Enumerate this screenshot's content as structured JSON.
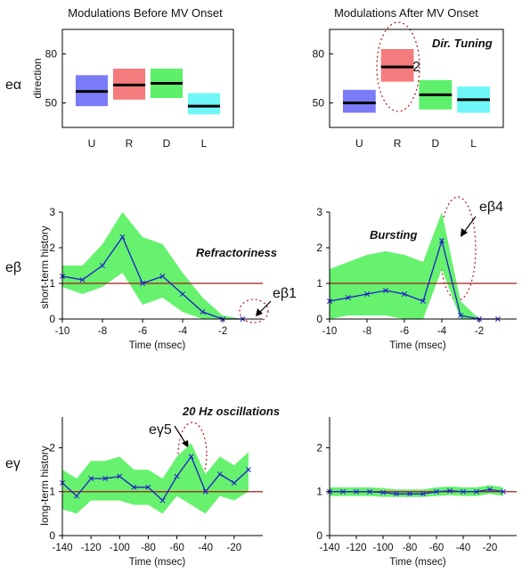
{
  "chart_data": [
    {
      "type": "bar",
      "title": "Modulations Before MV Onset",
      "ylabel": "direction",
      "ylim": [
        35,
        95
      ],
      "yticks": [
        50,
        80
      ],
      "categories": [
        "U",
        "R",
        "D",
        "L"
      ],
      "colors": [
        "#7b7bf7",
        "#f47c7c",
        "#5ef06a",
        "#6ff6f6"
      ],
      "values": [
        57,
        61,
        62,
        48
      ],
      "band_low": [
        48,
        52,
        53,
        43
      ],
      "band_high": [
        67,
        71,
        71,
        56
      ],
      "side_label": "eα"
    },
    {
      "type": "bar",
      "title": "Modulations After MV Onset",
      "ylim": [
        35,
        95
      ],
      "yticks": [
        50,
        80
      ],
      "categories": [
        "U",
        "R",
        "D",
        "L"
      ],
      "colors": [
        "#7b7bf7",
        "#f47c7c",
        "#5ef06a",
        "#6ff6f6"
      ],
      "values": [
        50,
        72,
        55,
        52
      ],
      "band_low": [
        44,
        63,
        46,
        44
      ],
      "band_high": [
        58,
        83,
        64,
        60
      ],
      "annotations": [
        "Dir. Tuning",
        "eα2"
      ]
    },
    {
      "type": "line",
      "ylabel": "short-term history",
      "xlabel": "Time (msec)",
      "xlim": [
        -10,
        0
      ],
      "ylim": [
        0,
        3
      ],
      "xticks": [
        -10,
        -8,
        -6,
        -4,
        -2
      ],
      "yticks": [
        0,
        1,
        2,
        3
      ],
      "reference_line": 1,
      "x": [
        -10,
        -9,
        -8,
        -7,
        -6,
        -5,
        -4,
        -3,
        -2,
        -1
      ],
      "y": [
        1.2,
        1.1,
        1.5,
        2.3,
        1.0,
        1.2,
        0.7,
        0.2,
        0.0,
        0.0
      ],
      "band_low": [
        0.9,
        0.7,
        0.9,
        1.3,
        0.4,
        0.6,
        0.2,
        0.0,
        0.0,
        0.0
      ],
      "band_high": [
        1.5,
        1.5,
        2.1,
        3.0,
        2.3,
        2.1,
        1.3,
        0.6,
        0.1,
        0.0
      ],
      "annotations": [
        "Refractoriness",
        "eβ1"
      ],
      "side_label": "eβ"
    },
    {
      "type": "line",
      "xlabel": "Time (msec)",
      "xlim": [
        -10,
        0
      ],
      "ylim": [
        0,
        3
      ],
      "xticks": [
        -10,
        -8,
        -6,
        -4,
        -2
      ],
      "yticks": [
        0,
        1,
        2,
        3
      ],
      "reference_line": 1,
      "x": [
        -10,
        -9,
        -8,
        -7,
        -6,
        -5,
        -4,
        -3,
        -2,
        -1
      ],
      "y": [
        0.5,
        0.6,
        0.7,
        0.8,
        0.7,
        0.5,
        2.2,
        0.1,
        0.0,
        0.0
      ],
      "band_low": [
        0.0,
        0.1,
        0.1,
        0.1,
        0.0,
        0.0,
        1.4,
        0.0,
        0.0,
        0.0
      ],
      "band_high": [
        1.4,
        1.6,
        1.8,
        1.9,
        1.8,
        1.6,
        3.0,
        0.5,
        0.0,
        0.0
      ],
      "annotations": [
        "Bursting",
        "eβ4"
      ]
    },
    {
      "type": "line",
      "ylabel": "long-term history",
      "xlabel": "Time (msec)",
      "xlim": [
        -140,
        0
      ],
      "ylim": [
        0,
        2.7
      ],
      "xticks": [
        -140,
        -120,
        -100,
        -80,
        -60,
        -40,
        -20
      ],
      "yticks": [
        0,
        1,
        2
      ],
      "reference_line": 1,
      "x": [
        -140,
        -130,
        -120,
        -110,
        -100,
        -90,
        -80,
        -70,
        -60,
        -50,
        -40,
        -30,
        -20,
        -10
      ],
      "y": [
        1.2,
        0.9,
        1.3,
        1.3,
        1.35,
        1.1,
        1.1,
        0.8,
        1.35,
        1.8,
        1.0,
        1.4,
        1.2,
        1.5
      ],
      "band_low": [
        0.6,
        0.5,
        0.8,
        0.8,
        0.8,
        0.7,
        0.7,
        0.5,
        0.9,
        0.7,
        0.5,
        0.9,
        0.8,
        1.0
      ],
      "band_high": [
        1.5,
        1.3,
        1.7,
        1.7,
        1.8,
        1.5,
        1.5,
        1.3,
        1.8,
        2.1,
        1.4,
        1.8,
        1.6,
        1.9
      ],
      "annotations": [
        "20 Hz oscillations",
        "eγ5"
      ],
      "side_label": "eγ"
    },
    {
      "type": "line",
      "xlabel": "Time (msec)",
      "xlim": [
        -140,
        0
      ],
      "ylim": [
        0,
        2.7
      ],
      "xticks": [
        -140,
        -120,
        -100,
        -80,
        -60,
        -40,
        -20
      ],
      "yticks": [
        0,
        1,
        2
      ],
      "reference_line": 1,
      "x": [
        -140,
        -130,
        -120,
        -110,
        -100,
        -90,
        -80,
        -70,
        -60,
        -50,
        -40,
        -30,
        -20,
        -10
      ],
      "y": [
        1.0,
        1.0,
        1.0,
        1.0,
        0.98,
        0.95,
        0.95,
        0.95,
        1.0,
        1.02,
        1.0,
        1.0,
        1.05,
        1.0
      ],
      "band_low": [
        0.9,
        0.9,
        0.9,
        0.9,
        0.88,
        0.88,
        0.88,
        0.88,
        0.9,
        0.92,
        0.9,
        0.9,
        0.95,
        0.9
      ],
      "band_high": [
        1.1,
        1.1,
        1.1,
        1.1,
        1.08,
        1.05,
        1.05,
        1.05,
        1.1,
        1.12,
        1.1,
        1.1,
        1.15,
        1.1
      ]
    }
  ]
}
